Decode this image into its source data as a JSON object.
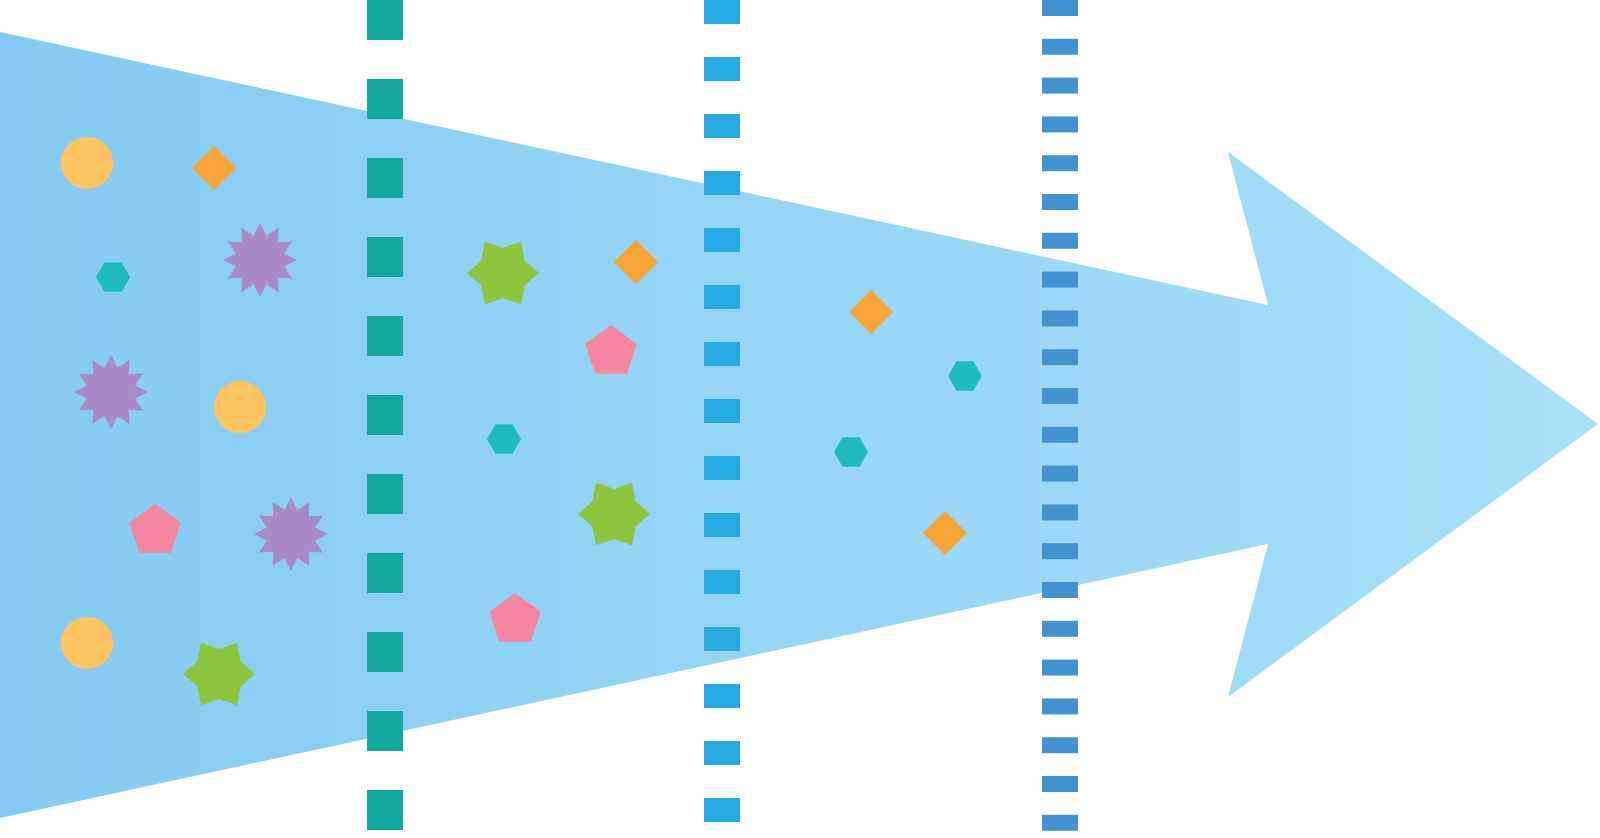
{
  "colors": {
    "arrow_start": "#85CBF1",
    "arrow_end": "#A8E0F8",
    "filter_1": "#13A89E",
    "filter_2": "#27AAE1",
    "filter_3": "#4393D1",
    "circle": "#FFC45F",
    "diamond": "#F8A538",
    "hexagon": "#1FBDB9",
    "starburst": "#A88AC4",
    "pentagon": "#F2879F",
    "star": "#8CC63F"
  },
  "particle_types": [
    "circle-icon",
    "diamond-icon",
    "hexagon-icon",
    "starburst-icon",
    "pentagon-icon",
    "star-icon"
  ],
  "stages": [
    {
      "region": "before-filter-1",
      "particles": [
        "circle",
        "diamond",
        "hexagon",
        "starburst",
        "starburst",
        "circle",
        "pentagon",
        "starburst",
        "circle",
        "star"
      ]
    },
    {
      "region": "between-filter-1-and-2",
      "particles": [
        "star",
        "diamond",
        "pentagon",
        "hexagon",
        "star",
        "pentagon"
      ]
    },
    {
      "region": "between-filter-2-and-3",
      "particles": [
        "diamond",
        "hexagon",
        "hexagon",
        "diamond"
      ]
    },
    {
      "region": "after-filter-3",
      "particles": []
    }
  ]
}
